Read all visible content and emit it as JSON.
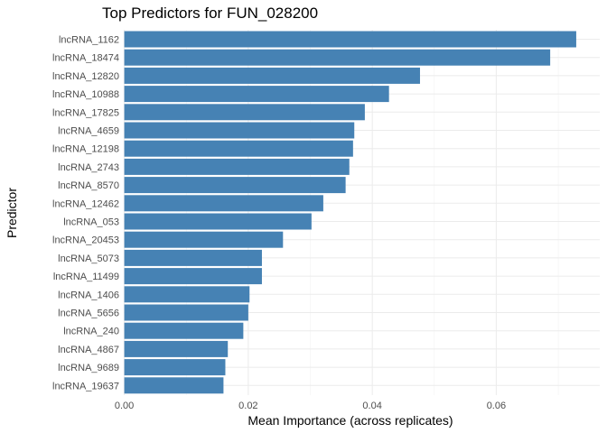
{
  "chart_data": {
    "type": "bar",
    "orientation": "horizontal",
    "title": "Top Predictors for FUN_028200",
    "xlabel": "Mean Importance (across replicates)",
    "ylabel": "Predictor",
    "xlim": [
      0,
      0.0765
    ],
    "xticks": [
      0.0,
      0.02,
      0.04,
      0.06
    ],
    "xtick_labels": [
      "0.00",
      "0.02",
      "0.04",
      "0.06"
    ],
    "grid": true,
    "legend": "none",
    "bar_color": "#4682B4",
    "categories": [
      "lncRNA_1162",
      "lncRNA_18474",
      "lncRNA_12820",
      "lncRNA_10988",
      "lncRNA_17825",
      "lncRNA_4659",
      "lncRNA_12198",
      "lncRNA_2743",
      "lncRNA_8570",
      "lncRNA_12462",
      "lncRNA_053",
      "lncRNA_20453",
      "lncRNA_5073",
      "lncRNA_11499",
      "lncRNA_1406",
      "lncRNA_5656",
      "lncRNA_240",
      "lncRNA_4867",
      "lncRNA_9689",
      "lncRNA_19637"
    ],
    "values": [
      0.0729,
      0.0687,
      0.0477,
      0.0427,
      0.0388,
      0.0371,
      0.0369,
      0.0363,
      0.0357,
      0.0321,
      0.0302,
      0.0256,
      0.0222,
      0.0222,
      0.0202,
      0.02,
      0.0192,
      0.0167,
      0.0163,
      0.016
    ]
  }
}
